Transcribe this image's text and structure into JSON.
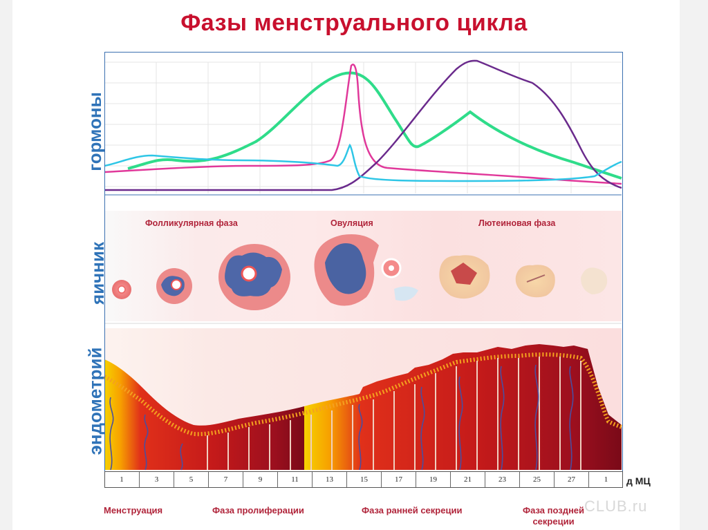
{
  "title": "Фазы менструального цикла",
  "sections": {
    "hormones_label": "гормоны",
    "ovary_label": "яичник",
    "endometrium_label": "эндометрий"
  },
  "ovary_phases": {
    "follicular": "Фолликулярная фаза",
    "ovulation": "Овуляция",
    "luteal": "Лютеиновая фаза"
  },
  "day_axis": {
    "days": [
      "1",
      "3",
      "5",
      "7",
      "9",
      "11",
      "13",
      "15",
      "17",
      "19",
      "21",
      "23",
      "25",
      "27",
      "1"
    ],
    "unit": "д МЦ"
  },
  "endometrium_phases": {
    "menstruation": "Менструация",
    "proliferation": "Фаза пролиферации",
    "early_secretion": "Фаза ранней секреции",
    "late_secretion_line1": "Фаза поздней",
    "late_secretion_line2": "секреции"
  },
  "watermark": "CLUB.ru",
  "colors": {
    "title": "#c8102e",
    "side_labels": "#2f73b8",
    "phase_labels": "#b0243a",
    "curve_green": "#2fdc8a",
    "curve_pink": "#e0389a",
    "curve_purple": "#6a2a8c",
    "curve_cyan": "#2ec6e6",
    "ovary_bg": "#fbe3e3",
    "endometrium_dark": "#9e1020",
    "endometrium_mid": "#d42a1c",
    "endometrium_edge": "#f0a020",
    "endometrium_base": "#f5c400"
  }
}
